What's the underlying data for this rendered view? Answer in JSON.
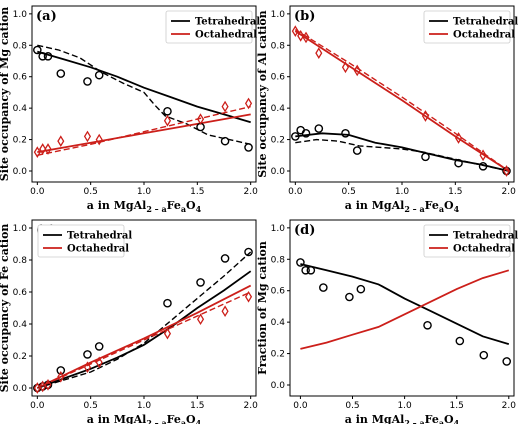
{
  "colors": {
    "tetrahedral": "#000000",
    "octahedral": "#cc1f1a"
  },
  "chart_data": [
    {
      "type": "line",
      "panel_label": "(a)",
      "xlabel_parts": [
        "a in MgAl",
        "2 – a",
        "Fe",
        "a",
        "O",
        "4"
      ],
      "ylabel": "Site occupancy of Mg cation",
      "xlim": [
        -0.05,
        2.05
      ],
      "ylim": [
        -0.07,
        1.05
      ],
      "xticks": [
        "0.0",
        "0.5",
        "1.0",
        "1.5",
        "2.0"
      ],
      "yticks": [
        "0.0",
        "0.2",
        "0.4",
        "0.6",
        "0.8",
        "1.0"
      ],
      "legend": {
        "position": "top-right",
        "entries": [
          "Tetrahedral",
          "Octahedral"
        ]
      },
      "series": [
        {
          "name": "Tetrahedral",
          "style": "solid",
          "x": [
            0,
            0.25,
            0.5,
            0.75,
            1.0,
            1.25,
            1.5,
            1.75,
            2.0
          ],
          "y": [
            0.76,
            0.71,
            0.66,
            0.6,
            0.53,
            0.47,
            0.41,
            0.36,
            0.31
          ]
        },
        {
          "name": "Tetrahedral-dashed",
          "style": "dashed",
          "x": [
            0,
            0.2,
            0.4,
            0.6,
            0.8,
            1.0,
            1.1,
            1.2,
            1.4,
            1.6,
            1.8,
            2.0
          ],
          "y": [
            0.8,
            0.77,
            0.72,
            0.63,
            0.56,
            0.5,
            0.42,
            0.35,
            0.3,
            0.23,
            0.2,
            0.17
          ]
        },
        {
          "name": "Tetrahedral-points",
          "style": "circle",
          "x": [
            0.0,
            0.05,
            0.1,
            0.22,
            0.47,
            0.58,
            1.22,
            1.53,
            1.76,
            1.98
          ],
          "y": [
            0.77,
            0.73,
            0.73,
            0.62,
            0.57,
            0.61,
            0.38,
            0.28,
            0.19,
            0.15
          ]
        },
        {
          "name": "Octahedral",
          "style": "solid",
          "x": [
            0,
            0.5,
            1.0,
            1.5,
            2.0
          ],
          "y": [
            0.12,
            0.18,
            0.24,
            0.3,
            0.36
          ]
        },
        {
          "name": "Octahedral-dashed",
          "style": "dashed",
          "x": [
            0,
            0.5,
            1.0,
            1.5,
            2.0
          ],
          "y": [
            0.1,
            0.17,
            0.25,
            0.33,
            0.41
          ]
        },
        {
          "name": "Octahedral-points",
          "style": "diamond",
          "x": [
            0.0,
            0.05,
            0.1,
            0.22,
            0.47,
            0.58,
            1.22,
            1.53,
            1.76,
            1.98
          ],
          "y": [
            0.12,
            0.14,
            0.14,
            0.19,
            0.22,
            0.2,
            0.32,
            0.33,
            0.41,
            0.43
          ]
        }
      ]
    },
    {
      "type": "line",
      "panel_label": "(b)",
      "xlabel_parts": [
        "a in MgAl",
        "2 – a",
        "Fe",
        "a",
        "O",
        "4"
      ],
      "ylabel": "Site occupancy of Al cation",
      "xlim": [
        -0.05,
        2.05
      ],
      "ylim": [
        -0.07,
        1.05
      ],
      "xticks": [
        "0.0",
        "0.5",
        "1.0",
        "1.5",
        "2.0"
      ],
      "yticks": [
        "0.0",
        "0.2",
        "0.4",
        "0.6",
        "0.8",
        "1.0"
      ],
      "legend": {
        "position": "top-right",
        "entries": [
          "Tetrahedral",
          "Octahedral"
        ]
      },
      "series": [
        {
          "name": "Tetrahedral",
          "style": "solid",
          "x": [
            0,
            0.25,
            0.5,
            0.75,
            1.0,
            1.25,
            1.5,
            1.75,
            2.0
          ],
          "y": [
            0.22,
            0.24,
            0.23,
            0.18,
            0.15,
            0.11,
            0.07,
            0.04,
            0.0
          ]
        },
        {
          "name": "Tetrahedral-dashed",
          "style": "dashed",
          "x": [
            0,
            0.2,
            0.4,
            0.6,
            0.8,
            1.0,
            1.2,
            1.4,
            1.6,
            1.8,
            2.0
          ],
          "y": [
            0.18,
            0.2,
            0.19,
            0.16,
            0.15,
            0.14,
            0.12,
            0.09,
            0.06,
            0.03,
            0.0
          ]
        },
        {
          "name": "Tetrahedral-points",
          "style": "circle",
          "x": [
            0.0,
            0.05,
            0.1,
            0.22,
            0.47,
            0.58,
            1.22,
            1.53,
            1.76,
            1.98
          ],
          "y": [
            0.22,
            0.26,
            0.24,
            0.27,
            0.24,
            0.13,
            0.09,
            0.05,
            0.03,
            0.0
          ]
        },
        {
          "name": "Octahedral",
          "style": "solid",
          "x": [
            0,
            0.5,
            1.0,
            1.5,
            2.0
          ],
          "y": [
            0.89,
            0.67,
            0.45,
            0.22,
            0.0
          ]
        },
        {
          "name": "Octahedral-dashed",
          "style": "dashed",
          "x": [
            0,
            0.5,
            1.0,
            1.5,
            2.0
          ],
          "y": [
            0.9,
            0.69,
            0.47,
            0.24,
            0.0
          ]
        },
        {
          "name": "Octahedral-points",
          "style": "diamond",
          "x": [
            0.0,
            0.05,
            0.1,
            0.22,
            0.47,
            0.58,
            1.22,
            1.53,
            1.76,
            1.98
          ],
          "y": [
            0.89,
            0.86,
            0.85,
            0.75,
            0.66,
            0.64,
            0.35,
            0.21,
            0.1,
            0.0
          ]
        }
      ]
    },
    {
      "type": "line",
      "panel_label": "(c)",
      "xlabel_parts": [
        "a in MgAl",
        "2 – a",
        "Fe",
        "a",
        "O",
        "4"
      ],
      "ylabel": "Site occupancy of Fe cation",
      "xlim": [
        -0.05,
        2.05
      ],
      "ylim": [
        -0.05,
        1.05
      ],
      "xticks": [
        "0.0",
        "0.5",
        "1.0",
        "1.5",
        "2.0"
      ],
      "yticks": [
        "0.0",
        "0.2",
        "0.4",
        "0.6",
        "0.8",
        "1.0"
      ],
      "legend": {
        "position": "top-left",
        "entries": [
          "Tetrahedral",
          "Octahedral"
        ]
      },
      "series": [
        {
          "name": "Tetrahedral",
          "style": "solid",
          "x": [
            0,
            0.25,
            0.5,
            0.75,
            1.0,
            1.25,
            1.5,
            1.75,
            2.0
          ],
          "y": [
            0.0,
            0.06,
            0.12,
            0.19,
            0.27,
            0.38,
            0.5,
            0.61,
            0.73
          ]
        },
        {
          "name": "Tetrahedral-dashed",
          "style": "dashed",
          "x": [
            0,
            0.25,
            0.5,
            0.75,
            1.0,
            1.25,
            1.5,
            1.75,
            2.0
          ],
          "y": [
            0.0,
            0.05,
            0.1,
            0.18,
            0.28,
            0.42,
            0.56,
            0.7,
            0.85
          ]
        },
        {
          "name": "Tetrahedral-points",
          "style": "circle",
          "x": [
            0.0,
            0.05,
            0.1,
            0.22,
            0.47,
            0.58,
            1.22,
            1.53,
            1.76,
            1.98
          ],
          "y": [
            0.0,
            0.01,
            0.02,
            0.11,
            0.21,
            0.26,
            0.53,
            0.66,
            0.81,
            0.85
          ]
        },
        {
          "name": "Octahedral",
          "style": "solid",
          "x": [
            0,
            0.5,
            1.0,
            1.5,
            2.0
          ],
          "y": [
            0.0,
            0.16,
            0.31,
            0.47,
            0.64
          ]
        },
        {
          "name": "Octahedral-dashed",
          "style": "dashed",
          "x": [
            0,
            0.5,
            1.0,
            1.5,
            2.0
          ],
          "y": [
            0.0,
            0.15,
            0.3,
            0.45,
            0.6
          ]
        },
        {
          "name": "Octahedral-points",
          "style": "diamond",
          "x": [
            0.0,
            0.05,
            0.1,
            0.22,
            0.47,
            0.58,
            1.22,
            1.53,
            1.76,
            1.98
          ],
          "y": [
            0.0,
            0.01,
            0.02,
            0.07,
            0.13,
            0.16,
            0.34,
            0.43,
            0.48,
            0.57
          ]
        }
      ]
    },
    {
      "type": "line",
      "panel_label": "(d)",
      "xlabel_parts": [
        "a in MgAl",
        "2 – a",
        "Fe",
        "a",
        "O",
        "4"
      ],
      "ylabel": "Fraction of Mg cation",
      "xlim": [
        -0.1,
        2.05
      ],
      "ylim": [
        -0.07,
        1.05
      ],
      "xticks": [
        "0.0",
        "0.5",
        "1.0",
        "1.5",
        "2.0"
      ],
      "yticks": [
        "0.0",
        "0.2",
        "0.4",
        "0.6",
        "0.8",
        "1.0"
      ],
      "legend": {
        "position": "top-right",
        "entries": [
          "Tetrahedral",
          "Octahedral"
        ]
      },
      "series": [
        {
          "name": "Tetrahedral",
          "style": "solid",
          "x": [
            0.0,
            0.25,
            0.5,
            0.75,
            1.0,
            1.25,
            1.5,
            1.75,
            2.0
          ],
          "y": [
            0.77,
            0.73,
            0.69,
            0.64,
            0.55,
            0.47,
            0.39,
            0.31,
            0.26
          ]
        },
        {
          "name": "Tetrahedral-points",
          "style": "circle",
          "x": [
            0.0,
            0.05,
            0.1,
            0.22,
            0.47,
            0.58,
            1.22,
            1.53,
            1.76,
            1.98
          ],
          "y": [
            0.78,
            0.73,
            0.73,
            0.62,
            0.56,
            0.61,
            0.38,
            0.28,
            0.19,
            0.15
          ]
        },
        {
          "name": "Octahedral",
          "style": "solid",
          "x": [
            0.0,
            0.25,
            0.5,
            0.75,
            1.0,
            1.25,
            1.5,
            1.75,
            2.0
          ],
          "y": [
            0.23,
            0.27,
            0.32,
            0.37,
            0.45,
            0.53,
            0.61,
            0.68,
            0.73
          ]
        }
      ]
    }
  ]
}
